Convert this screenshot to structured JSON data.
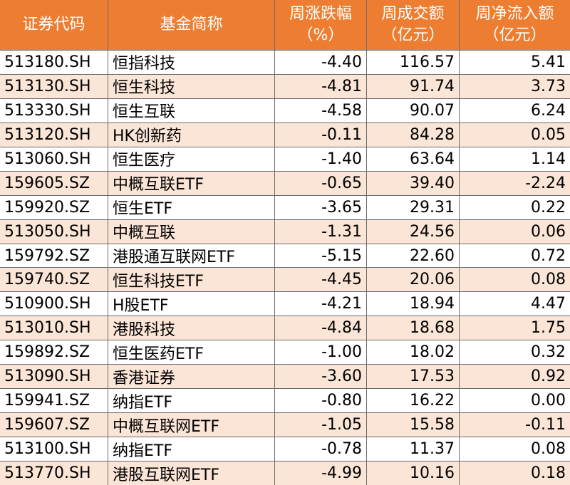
{
  "table": {
    "header": [
      [
        "证券代码"
      ],
      [
        "基金简称"
      ],
      [
        "周涨跌幅",
        "（%）"
      ],
      [
        "周成交额",
        "（亿元）"
      ],
      [
        "周净流入额",
        "（亿元）"
      ]
    ],
    "rows": [
      [
        "513180.SH",
        "恒指科技",
        "-4.40",
        "116.57",
        "5.41"
      ],
      [
        "513130.SH",
        "恒生科技",
        "-4.81",
        "91.74",
        "3.73"
      ],
      [
        "513330.SH",
        "恒生互联",
        "-4.58",
        "90.07",
        "6.24"
      ],
      [
        "513120.SH",
        "HK创新药",
        "-0.11",
        "84.28",
        "0.05"
      ],
      [
        "513060.SH",
        "恒生医疗",
        "-1.40",
        "63.64",
        "1.14"
      ],
      [
        "159605.SZ",
        "中概互联ETF",
        "-0.65",
        "39.40",
        "-2.24"
      ],
      [
        "159920.SZ",
        "恒生ETF",
        "-3.65",
        "29.31",
        "0.22"
      ],
      [
        "513050.SH",
        "中概互联",
        "-1.31",
        "24.56",
        "0.06"
      ],
      [
        "159792.SZ",
        "港股通互联网ETF",
        "-5.15",
        "22.60",
        "0.72"
      ],
      [
        "159740.SZ",
        "恒生科技ETF",
        "-4.45",
        "20.06",
        "0.08"
      ],
      [
        "510900.SH",
        "H股ETF",
        "-4.21",
        "18.94",
        "4.47"
      ],
      [
        "513010.SH",
        "港股科技",
        "-4.84",
        "18.68",
        "1.75"
      ],
      [
        "159892.SZ",
        "恒生医药ETF",
        "-1.00",
        "18.02",
        "0.32"
      ],
      [
        "513090.SH",
        "香港证券",
        "-3.60",
        "17.53",
        "0.92"
      ],
      [
        "159941.SZ",
        "纳指ETF",
        "-0.80",
        "16.22",
        "0.00"
      ],
      [
        "159607.SZ",
        "中概互联网ETF",
        "-1.05",
        "15.58",
        "-0.11"
      ],
      [
        "513100.SH",
        "纳指ETF",
        "-0.78",
        "11.37",
        "0.08"
      ],
      [
        "513770.SH",
        "港股互联网ETF",
        "-4.99",
        "10.16",
        "0.18"
      ]
    ]
  }
}
